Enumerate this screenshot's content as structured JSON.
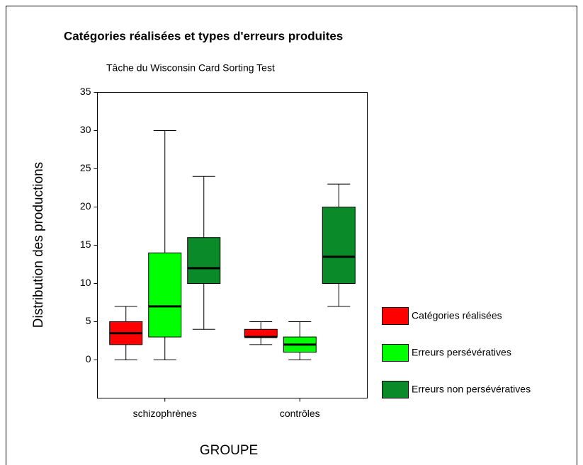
{
  "chart_data": {
    "type": "box",
    "title": "Catégories réalisées et types d'erreurs produites",
    "subtitle": "Tâche du Wisconsin Card Sorting Test",
    "x_label": "GROUPE",
    "y_label": "Distribution des productions",
    "categories": [
      "schizophrènes",
      "contrôles"
    ],
    "ylim": [
      -5,
      35
    ],
    "yticks": [
      0,
      5,
      10,
      15,
      20,
      25,
      30,
      35
    ],
    "legend": "right",
    "series": [
      {
        "name": "Catégories réalisées",
        "color": "#ff0000",
        "values": [
          {
            "min": 0,
            "q1": 2,
            "median": 3.5,
            "q3": 5,
            "max": 7
          },
          {
            "min": 2,
            "q1": 3,
            "median": 3,
            "q3": 4,
            "max": 5
          }
        ]
      },
      {
        "name": "Erreurs persévératives",
        "color": "#00ff00",
        "values": [
          {
            "min": 0,
            "q1": 3,
            "median": 7,
            "q3": 14,
            "max": 30
          },
          {
            "min": 0,
            "q1": 1,
            "median": 2,
            "q3": 3,
            "max": 5
          }
        ]
      },
      {
        "name": "Erreurs non persévératives",
        "color": "#0b8a2a",
        "values": [
          {
            "min": 4,
            "q1": 10,
            "median": 12,
            "q3": 16,
            "max": 24
          },
          {
            "min": 7,
            "q1": 10,
            "median": 13.5,
            "q3": 20,
            "max": 23
          }
        ]
      }
    ]
  }
}
